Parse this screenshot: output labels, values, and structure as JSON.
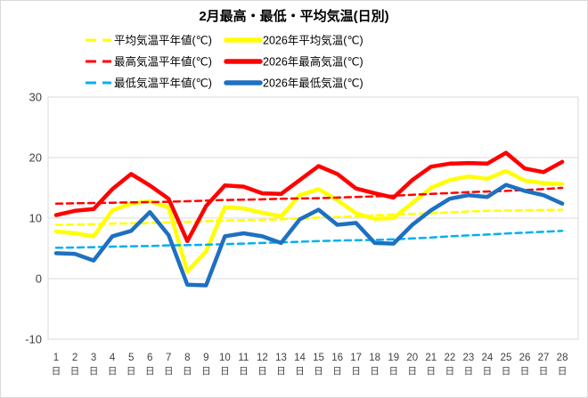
{
  "title": "2月最高・最低・平均気温(日別)",
  "chart_data": {
    "type": "line",
    "x": [
      1,
      2,
      3,
      4,
      5,
      6,
      7,
      8,
      9,
      10,
      11,
      12,
      13,
      14,
      15,
      16,
      17,
      18,
      19,
      20,
      21,
      22,
      23,
      24,
      25,
      26,
      27,
      28
    ],
    "x_suffix": "日",
    "ylim": [
      -10,
      30
    ],
    "y_ticks": [
      30,
      20,
      10,
      0,
      -10
    ],
    "grid": true,
    "legend_position": "top",
    "colors": {
      "red": "#FF0000",
      "yellow": "#FFFF00",
      "blue_solid": "#1E70C1",
      "blue_dashed": "#00B0F0",
      "gridline": "#D9D9D9",
      "axis_text": "#404040"
    },
    "series": [
      {
        "name": "平均気温平年値(℃)",
        "color": "#FFFF00",
        "style": "dashed",
        "values": [
          8.9,
          8.95,
          9.0,
          9.1,
          9.15,
          9.2,
          9.3,
          9.4,
          9.5,
          9.6,
          9.65,
          9.7,
          9.8,
          9.95,
          10.1,
          10.2,
          10.3,
          10.45,
          10.6,
          10.7,
          10.8,
          10.95,
          11.1,
          11.2,
          11.25,
          11.3,
          11.35,
          11.4
        ]
      },
      {
        "name": "2026年平均気温(℃)",
        "color": "#FFFF00",
        "style": "solid",
        "values": [
          7.8,
          7.5,
          7.0,
          11.3,
          12.4,
          12.8,
          11.8,
          1.2,
          4.5,
          11.8,
          11.6,
          10.9,
          10.3,
          13.8,
          14.8,
          13.0,
          10.8,
          9.9,
          10.0,
          12.5,
          15.0,
          16.3,
          16.9,
          16.5,
          17.8,
          16.2,
          15.8,
          15.6
        ]
      },
      {
        "name": "最高気温平年値(℃)",
        "color": "#FF0000",
        "style": "dashed",
        "values": [
          12.4,
          12.45,
          12.5,
          12.55,
          12.6,
          12.65,
          12.7,
          12.8,
          12.9,
          13.0,
          13.05,
          13.1,
          13.2,
          13.25,
          13.3,
          13.4,
          13.5,
          13.6,
          13.7,
          13.85,
          14.0,
          14.15,
          14.3,
          14.4,
          14.5,
          14.65,
          14.8,
          15.0
        ]
      },
      {
        "name": "2026年最高気温(℃)",
        "color": "#FF0000",
        "style": "solid",
        "values": [
          10.5,
          11.2,
          11.5,
          14.8,
          17.3,
          15.4,
          13.2,
          6.2,
          12.0,
          15.4,
          15.2,
          14.1,
          14.0,
          16.3,
          18.6,
          17.3,
          14.9,
          14.1,
          13.4,
          16.3,
          18.5,
          19.0,
          19.1,
          19.0,
          20.8,
          18.2,
          17.6,
          19.3
        ]
      },
      {
        "name": "最低気温平年値(℃)",
        "color": "#00B0F0",
        "style": "dashed",
        "values": [
          5.1,
          5.15,
          5.2,
          5.3,
          5.35,
          5.4,
          5.5,
          5.55,
          5.6,
          5.7,
          5.8,
          5.9,
          6.0,
          6.1,
          6.2,
          6.3,
          6.35,
          6.4,
          6.5,
          6.65,
          6.8,
          7.0,
          7.15,
          7.3,
          7.45,
          7.6,
          7.75,
          7.9
        ]
      },
      {
        "name": "2026年最低気温(℃)",
        "color": "#1E70C1",
        "style": "solid",
        "values": [
          4.2,
          4.1,
          3.0,
          7.0,
          7.9,
          11.0,
          7.2,
          -1.0,
          -1.1,
          7.0,
          7.5,
          7.0,
          5.9,
          9.8,
          11.4,
          8.9,
          9.2,
          5.9,
          5.8,
          8.9,
          11.3,
          13.2,
          13.8,
          13.5,
          15.5,
          14.5,
          13.8,
          12.4
        ]
      }
    ]
  }
}
